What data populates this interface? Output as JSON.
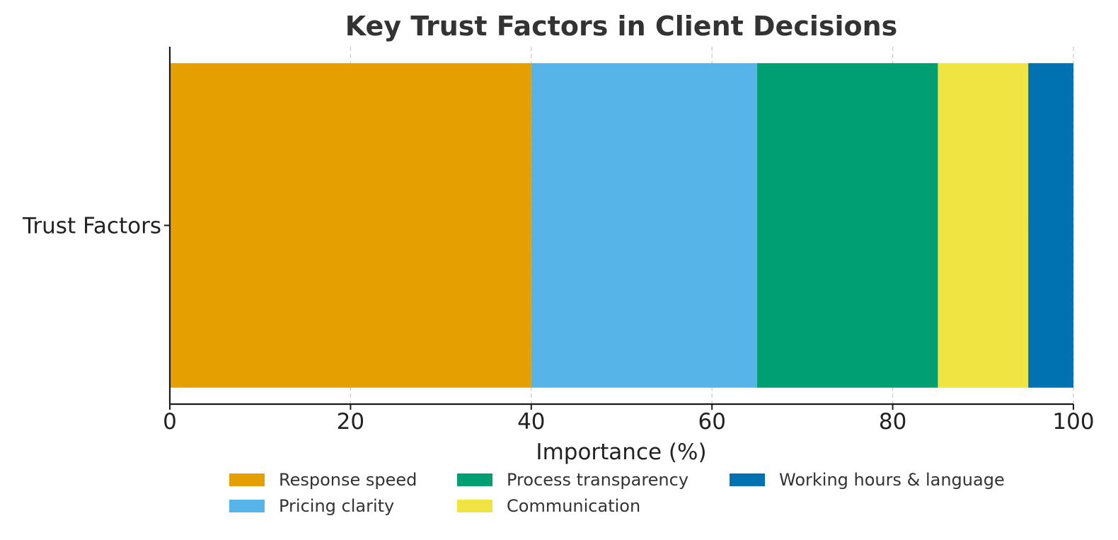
{
  "chart_data": {
    "type": "bar",
    "orientation": "horizontal",
    "stacked": true,
    "title": "Key Trust Factors in Client Decisions",
    "xlabel": "Importance (%)",
    "ylabel": "",
    "categories": [
      "Trust Factors"
    ],
    "xlim": [
      0,
      100
    ],
    "xticks": [
      "0",
      "20",
      "40",
      "60",
      "80",
      "100"
    ],
    "grid": true,
    "legend_position": "bottom",
    "series": [
      {
        "name": "Response speed",
        "values": [
          40
        ],
        "color": "#E69F00"
      },
      {
        "name": "Pricing clarity",
        "values": [
          25
        ],
        "color": "#56B4E9"
      },
      {
        "name": "Process transparency",
        "values": [
          20
        ],
        "color": "#009E73"
      },
      {
        "name": "Communication",
        "values": [
          10
        ],
        "color": "#F0E442"
      },
      {
        "name": "Working hours & language",
        "values": [
          5
        ],
        "color": "#0072B2"
      }
    ]
  }
}
